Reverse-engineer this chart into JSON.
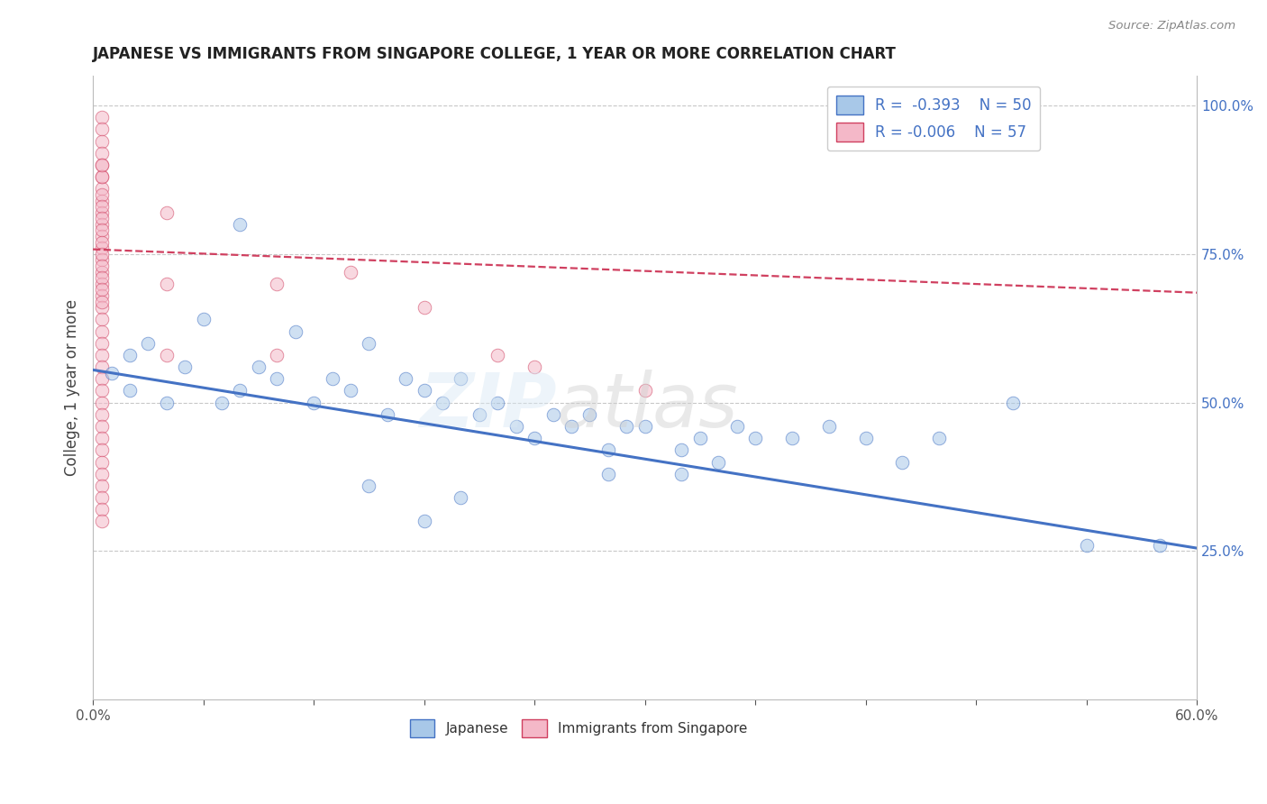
{
  "title": "JAPANESE VS IMMIGRANTS FROM SINGAPORE COLLEGE, 1 YEAR OR MORE CORRELATION CHART",
  "source": "Source: ZipAtlas.com",
  "ylabel": "College, 1 year or more",
  "xlim": [
    0.0,
    0.6
  ],
  "ylim": [
    0.0,
    1.05
  ],
  "yticks_right": [
    0.25,
    0.5,
    0.75,
    1.0
  ],
  "ytick_labels_right": [
    "25.0%",
    "50.0%",
    "75.0%",
    "100.0%"
  ],
  "color_blue": "#a8c8e8",
  "color_pink": "#f4b8c8",
  "trendline_blue": "#4472c4",
  "trendline_pink": "#d04060",
  "grid_color": "#c8c8c8",
  "blue_trend_x": [
    0.0,
    0.6
  ],
  "blue_trend_y": [
    0.555,
    0.255
  ],
  "pink_trend_x": [
    0.0,
    0.6
  ],
  "pink_trend_y": [
    0.758,
    0.685
  ],
  "japanese_x": [
    0.01,
    0.02,
    0.02,
    0.03,
    0.04,
    0.05,
    0.06,
    0.07,
    0.08,
    0.09,
    0.1,
    0.11,
    0.12,
    0.13,
    0.14,
    0.15,
    0.16,
    0.17,
    0.18,
    0.19,
    0.2,
    0.21,
    0.22,
    0.23,
    0.24,
    0.25,
    0.26,
    0.27,
    0.28,
    0.29,
    0.3,
    0.32,
    0.33,
    0.34,
    0.35,
    0.36,
    0.38,
    0.4,
    0.42,
    0.44,
    0.46,
    0.5,
    0.54,
    0.58,
    0.15,
    0.2,
    0.28,
    0.32,
    0.18,
    0.08
  ],
  "japanese_y": [
    0.55,
    0.52,
    0.58,
    0.6,
    0.5,
    0.56,
    0.64,
    0.5,
    0.52,
    0.56,
    0.54,
    0.62,
    0.5,
    0.54,
    0.52,
    0.6,
    0.48,
    0.54,
    0.52,
    0.5,
    0.54,
    0.48,
    0.5,
    0.46,
    0.44,
    0.48,
    0.46,
    0.48,
    0.42,
    0.46,
    0.46,
    0.42,
    0.44,
    0.4,
    0.46,
    0.44,
    0.44,
    0.46,
    0.44,
    0.4,
    0.44,
    0.5,
    0.26,
    0.26,
    0.36,
    0.34,
    0.38,
    0.38,
    0.3,
    0.8
  ],
  "singapore_x": [
    0.005,
    0.005,
    0.005,
    0.005,
    0.005,
    0.005,
    0.005,
    0.005,
    0.005,
    0.005,
    0.005,
    0.005,
    0.005,
    0.005,
    0.005,
    0.005,
    0.005,
    0.005,
    0.005,
    0.005,
    0.005,
    0.005,
    0.005,
    0.005,
    0.005,
    0.005,
    0.005,
    0.005,
    0.005,
    0.005,
    0.005,
    0.005,
    0.005,
    0.005,
    0.005,
    0.005,
    0.005,
    0.005,
    0.005,
    0.005,
    0.005,
    0.005,
    0.005,
    0.005,
    0.005,
    0.04,
    0.04,
    0.04,
    0.1,
    0.1,
    0.14,
    0.18,
    0.22,
    0.24,
    0.3,
    0.005,
    0.005
  ],
  "singapore_y": [
    0.98,
    0.96,
    0.94,
    0.92,
    0.9,
    0.88,
    0.86,
    0.84,
    0.82,
    0.8,
    0.78,
    0.76,
    0.74,
    0.72,
    0.7,
    0.68,
    0.66,
    0.64,
    0.62,
    0.6,
    0.58,
    0.56,
    0.54,
    0.52,
    0.5,
    0.48,
    0.46,
    0.44,
    0.42,
    0.4,
    0.38,
    0.36,
    0.34,
    0.32,
    0.3,
    0.85,
    0.83,
    0.81,
    0.79,
    0.77,
    0.75,
    0.73,
    0.71,
    0.69,
    0.67,
    0.82,
    0.7,
    0.58,
    0.7,
    0.58,
    0.72,
    0.66,
    0.58,
    0.56,
    0.52,
    0.88,
    0.9
  ]
}
